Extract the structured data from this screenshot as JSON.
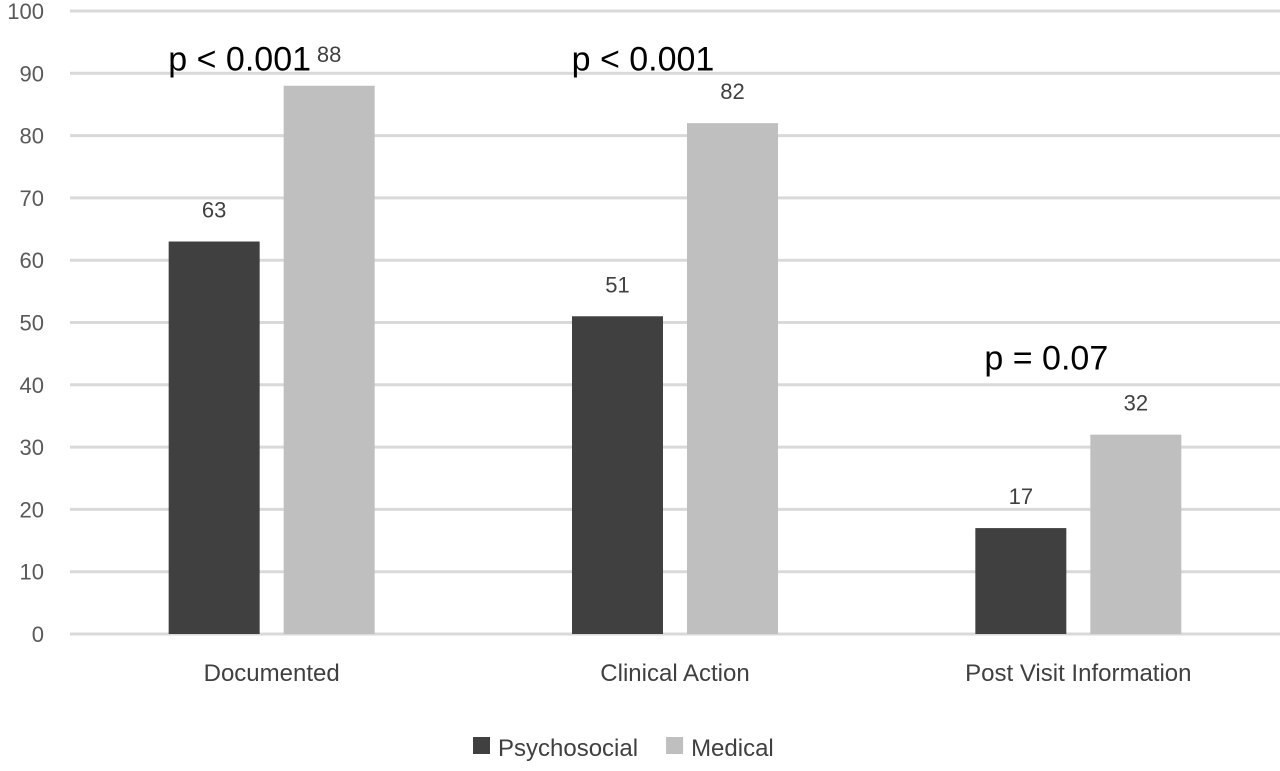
{
  "chart_data": {
    "type": "bar",
    "categories": [
      "Documented",
      "Clinical Action",
      "Post Visit Information"
    ],
    "series": [
      {
        "name": "Psychosocial",
        "values": [
          63,
          51,
          17
        ],
        "color": "#404040"
      },
      {
        "name": "Medical",
        "values": [
          88,
          82,
          32
        ],
        "color": "#bfbfbf"
      }
    ],
    "data_labels": [
      [
        "63",
        "51",
        "17"
      ],
      [
        "88",
        "82",
        "32"
      ]
    ],
    "ylim": [
      0,
      100
    ],
    "yticks": [
      0,
      10,
      20,
      30,
      40,
      50,
      60,
      70,
      80,
      90,
      100
    ],
    "grid": true,
    "grid_color": "#d9d9d9",
    "legend_position": "bottom",
    "annotations": [
      {
        "text": "p < 0.001",
        "category_index": 0,
        "value": 94
      },
      {
        "text": "p < 0.001",
        "category_index": 1,
        "value": 94
      },
      {
        "text": "p = 0.07",
        "category_index": 2,
        "value": 46
      }
    ],
    "title": "",
    "xlabel": "",
    "ylabel": ""
  }
}
